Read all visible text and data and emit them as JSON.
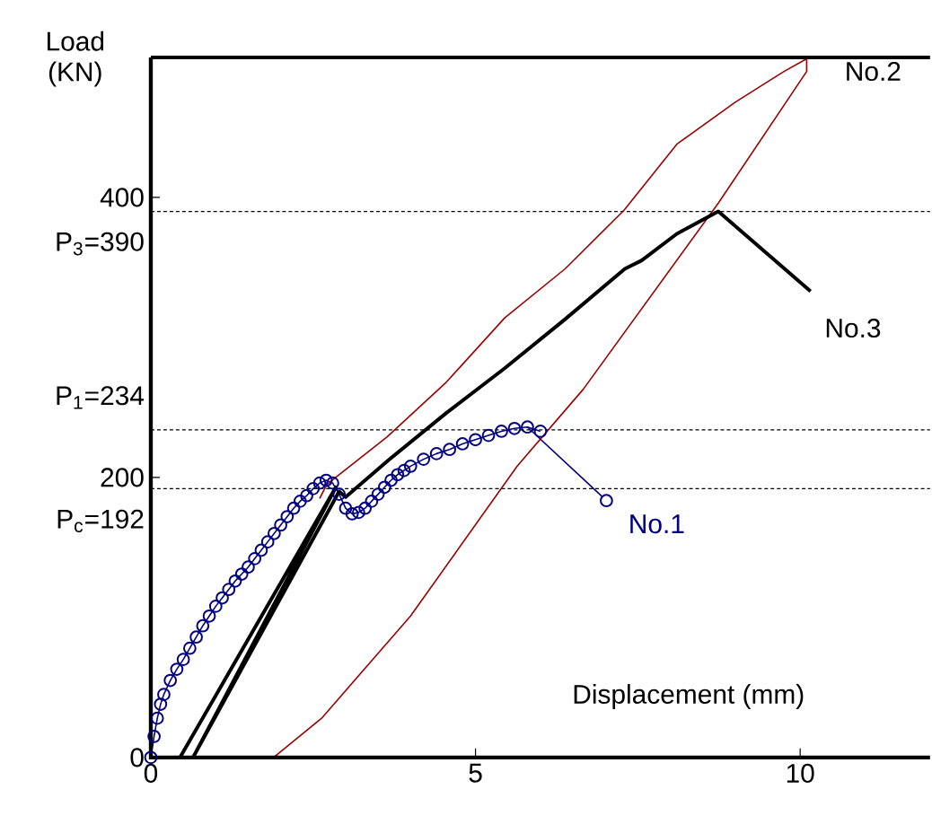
{
  "chart_data": {
    "type": "line",
    "xlabel": "Displacement (mm)",
    "ylabel": "Load (KN)",
    "xlim": [
      0,
      12
    ],
    "ylim": [
      0,
      500
    ],
    "xticks": [
      0,
      5,
      10
    ],
    "yticks": [
      0,
      200,
      400
    ],
    "series": [
      {
        "name": "No.1",
        "color": "#000080",
        "marker": "circle",
        "x": [
          0,
          0.05,
          0.1,
          0.15,
          0.2,
          0.3,
          0.4,
          0.5,
          0.6,
          0.7,
          0.8,
          0.9,
          1.0,
          1.1,
          1.2,
          1.3,
          1.4,
          1.5,
          1.6,
          1.7,
          1.8,
          1.9,
          2.0,
          2.1,
          2.2,
          2.3,
          2.4,
          2.5,
          2.6,
          2.7,
          2.8,
          2.9,
          3.0,
          3.1,
          3.2,
          3.3,
          3.4,
          3.5,
          3.6,
          3.7,
          3.8,
          3.9,
          4.0,
          4.2,
          4.4,
          4.6,
          4.8,
          5.0,
          5.2,
          5.4,
          5.6,
          5.8,
          6.0
        ],
        "values": [
          0,
          15,
          28,
          38,
          45,
          55,
          63,
          70,
          78,
          86,
          94,
          101,
          108,
          114,
          120,
          126,
          131,
          136,
          142,
          148,
          154,
          160,
          166,
          172,
          178,
          183,
          187,
          192,
          196,
          198,
          196,
          188,
          178,
          174,
          175,
          178,
          183,
          188,
          193,
          198,
          202,
          205,
          208,
          213,
          217,
          220,
          224,
          227,
          230,
          233,
          235,
          236,
          233
        ]
      },
      {
        "name": "No.2",
        "color": "#990000",
        "marker": "none",
        "x": [
          2.6,
          2.71,
          3.64,
          4.55,
          5.45,
          6.38,
          7.29,
          8.1,
          9.0,
          9.75,
          10.1,
          10.1,
          8.74,
          6.66,
          5.64,
          4.0,
          2.63,
          1.89,
          1.62
        ],
        "values": [
          185,
          195,
          229,
          268,
          314,
          349,
          391,
          438,
          468,
          490,
          499,
          490,
          396,
          263,
          208,
          101,
          28,
          0,
          0
        ]
      },
      {
        "name": "No.3",
        "color": "#000000",
        "marker": "none",
        "x": [
          0.45,
          2.85,
          0.65,
          2.9,
          3.0,
          3.65,
          4.55,
          5.45,
          6.38,
          7.3,
          7.56,
          8.1,
          8.74,
          10.16
        ],
        "values": [
          0,
          193,
          0,
          190,
          186,
          212,
          246,
          278,
          313,
          349,
          355,
          374,
          390,
          333
        ]
      }
    ],
    "ref_lines": [
      {
        "axis": "y",
        "value": 390,
        "label": "P$_{3}$=390",
        "color": "#000000",
        "line_style": "dashed"
      },
      {
        "axis": "y",
        "value": 234,
        "label": "P$_{1}$=234",
        "color": "#000000",
        "line_style": "dashed"
      },
      {
        "axis": "y",
        "value": 192,
        "label": "P$_{c}$=192",
        "color": "#000000",
        "line_style": "dashed"
      }
    ]
  }
}
